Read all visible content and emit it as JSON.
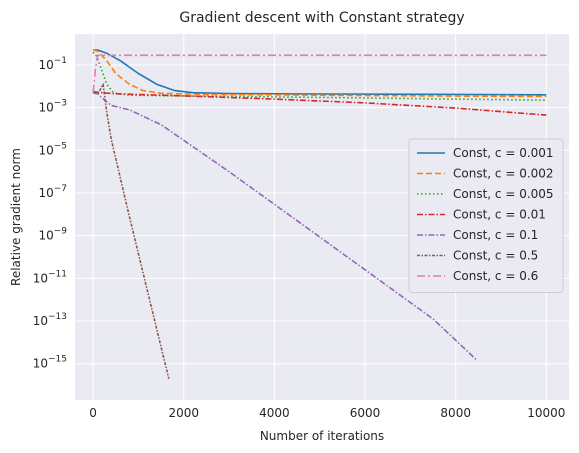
{
  "chart_data": {
    "type": "line",
    "title": "Gradient descent with Constant strategy",
    "xlabel": "Number of iterations",
    "ylabel": "Relative gradient norm",
    "yscale": "log",
    "xlim": [
      -400,
      10500
    ],
    "ylim_exp": [
      -16.7,
      0.45
    ],
    "xticks": [
      0,
      2000,
      4000,
      6000,
      8000,
      10000
    ],
    "yticks": [
      {
        "exp": -15,
        "base": "10",
        "power": "−15"
      },
      {
        "exp": -13,
        "base": "10",
        "power": "−13"
      },
      {
        "exp": -11,
        "base": "10",
        "power": "−11"
      },
      {
        "exp": -9,
        "base": "10",
        "power": "−9"
      },
      {
        "exp": -7,
        "base": "10",
        "power": "−7"
      },
      {
        "exp": -5,
        "base": "10",
        "power": "−5"
      },
      {
        "exp": -3,
        "base": "10",
        "power": "−3"
      },
      {
        "exp": -1,
        "base": "10",
        "power": "−1"
      }
    ],
    "grid": true,
    "legend_position": "center-right",
    "series": [
      {
        "name": "Const, c = 0.001",
        "color": "#1f77b4",
        "dash": "solid",
        "points": [
          [
            0,
            -0.3
          ],
          [
            100,
            -0.3
          ],
          [
            300,
            -0.45
          ],
          [
            600,
            -0.8
          ],
          [
            1000,
            -1.4
          ],
          [
            1400,
            -1.9
          ],
          [
            1800,
            -2.2
          ],
          [
            2200,
            -2.3
          ],
          [
            3000,
            -2.34
          ],
          [
            5000,
            -2.36
          ],
          [
            8000,
            -2.38
          ],
          [
            10000,
            -2.4
          ]
        ]
      },
      {
        "name": "Const, c = 0.002",
        "color": "#ff7f0e",
        "dash": "dashed",
        "points": [
          [
            0,
            -0.3
          ],
          [
            100,
            -0.35
          ],
          [
            300,
            -0.8
          ],
          [
            500,
            -1.4
          ],
          [
            800,
            -1.9
          ],
          [
            1100,
            -2.2
          ],
          [
            1500,
            -2.33
          ],
          [
            2500,
            -2.38
          ],
          [
            5000,
            -2.42
          ],
          [
            8000,
            -2.46
          ],
          [
            10000,
            -2.48
          ]
        ]
      },
      {
        "name": "Const, c = 0.005",
        "color": "#2ca02c",
        "dash": "dotted",
        "points": [
          [
            0,
            -0.4
          ],
          [
            80,
            -0.6
          ],
          [
            200,
            -1.3
          ],
          [
            300,
            -1.9
          ],
          [
            450,
            -2.3
          ],
          [
            800,
            -2.42
          ],
          [
            2000,
            -2.45
          ],
          [
            5000,
            -2.52
          ],
          [
            8000,
            -2.6
          ],
          [
            10000,
            -2.65
          ]
        ]
      },
      {
        "name": "Const, c = 0.01",
        "color": "#d62728",
        "dash": "dashdot",
        "points": [
          [
            0,
            -2.25
          ],
          [
            100,
            -2.28
          ],
          [
            500,
            -2.35
          ],
          [
            2000,
            -2.45
          ],
          [
            4000,
            -2.6
          ],
          [
            6000,
            -2.78
          ],
          [
            8000,
            -3.02
          ],
          [
            10000,
            -3.35
          ]
        ]
      },
      {
        "name": "Const, c = 0.1",
        "color": "#9467bd",
        "dash": "dashdot",
        "points": [
          [
            0,
            -2.3
          ],
          [
            100,
            -2.35
          ],
          [
            200,
            -2.55
          ],
          [
            400,
            -2.9
          ],
          [
            800,
            -3.1
          ],
          [
            1500,
            -3.8
          ],
          [
            3000,
            -6.0
          ],
          [
            4500,
            -8.3
          ],
          [
            6000,
            -10.6
          ],
          [
            7500,
            -12.9
          ],
          [
            8450,
            -14.8
          ]
        ]
      },
      {
        "name": "Const, c = 0.5",
        "color": "#8c564b",
        "dash": "densedashdot",
        "points": [
          [
            0,
            -2.3
          ],
          [
            120,
            -2.3
          ],
          [
            220,
            -1.9
          ],
          [
            300,
            -3.2
          ],
          [
            400,
            -4.5
          ],
          [
            800,
            -8.1
          ],
          [
            1200,
            -11.6
          ],
          [
            1670,
            -15.7
          ]
        ]
      },
      {
        "name": "Const, c = 0.6",
        "color": "#e377c2",
        "dash": "dashdotwide",
        "points": [
          [
            0,
            -2.3
          ],
          [
            50,
            -1.2
          ],
          [
            100,
            -0.55
          ],
          [
            200,
            -0.55
          ],
          [
            1000,
            -0.55
          ],
          [
            5000,
            -0.55
          ],
          [
            10000,
            -0.55
          ]
        ]
      }
    ]
  }
}
